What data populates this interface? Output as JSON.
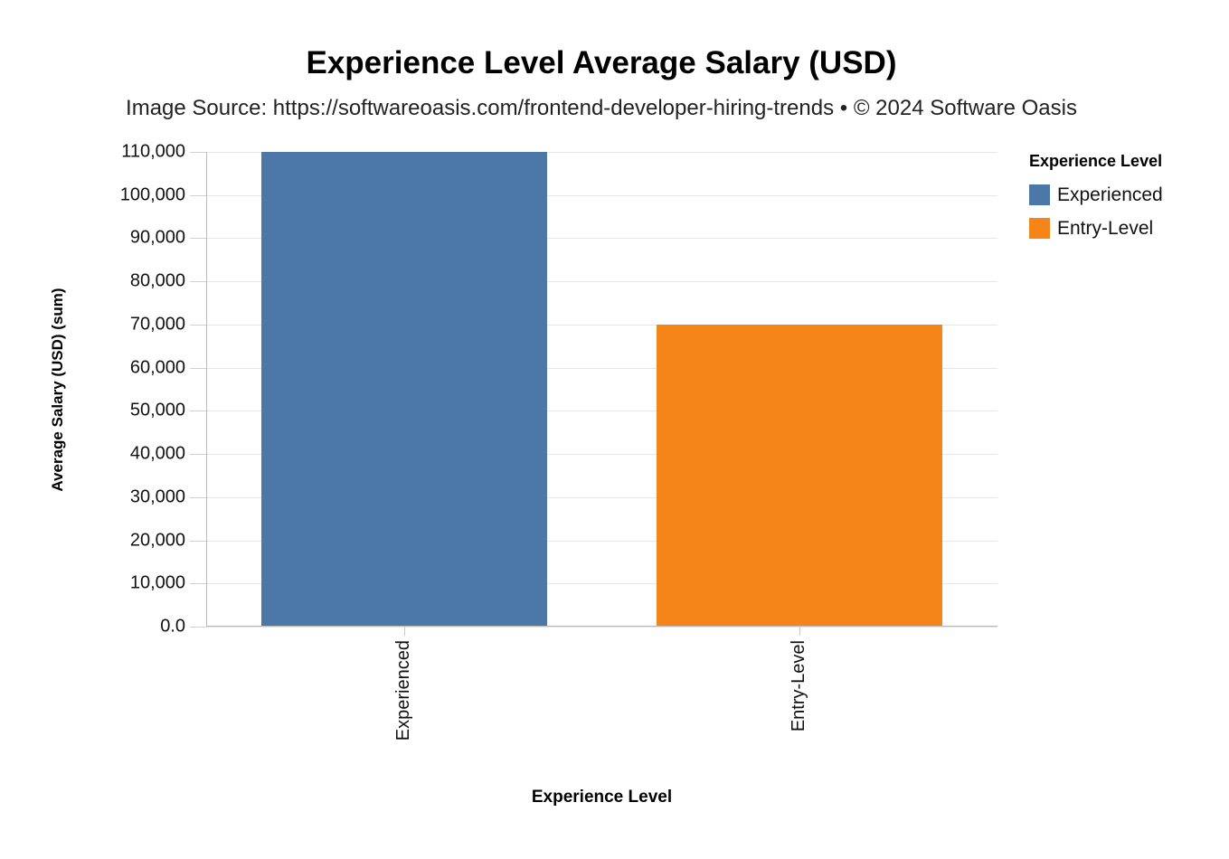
{
  "title": "Experience Level Average Salary (USD)",
  "subtitle": "Image Source: https://softwareoasis.com/frontend-developer-hiring-trends • © 2024 Software Oasis",
  "colors": {
    "Experienced": "#4c78a8",
    "Entry-Level": "#f58518"
  },
  "y_ticks": [
    "0.0",
    "10,000",
    "20,000",
    "30,000",
    "40,000",
    "50,000",
    "60,000",
    "70,000",
    "80,000",
    "90,000",
    "100,000",
    "110,000"
  ],
  "legend": {
    "title": "Experience Level",
    "items": [
      {
        "label": "Experienced",
        "color": "#4c78a8"
      },
      {
        "label": "Entry-Level",
        "color": "#f58518"
      }
    ]
  },
  "chart_data": {
    "type": "bar",
    "title": "Experience Level Average Salary (USD)",
    "subtitle": "Image Source: https://softwareoasis.com/frontend-developer-hiring-trends • © 2024 Software Oasis",
    "categories": [
      "Experienced",
      "Entry-Level"
    ],
    "values": [
      110000,
      70000
    ],
    "colors": [
      "#4c78a8",
      "#f58518"
    ],
    "xlabel": "Experience Level",
    "ylabel": "Average Salary (USD) (sum)",
    "ylim": [
      0,
      110000
    ],
    "y_tick_step": 10000,
    "grid": true,
    "legend_position": "right",
    "legend_title": "Experience Level"
  }
}
